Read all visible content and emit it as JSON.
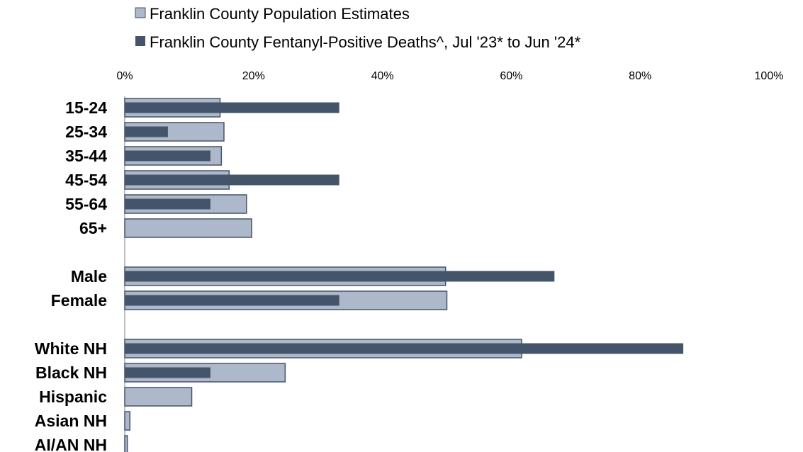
{
  "chart_data": {
    "type": "bar",
    "orientation": "horizontal",
    "title": "",
    "xlabel": "",
    "ylabel": "",
    "xlim": [
      0,
      100
    ],
    "x_ticks": [
      "0%",
      "20%",
      "40%",
      "60%",
      "80%",
      "100%"
    ],
    "x_axis_position": "top",
    "grid": false,
    "legend_position": "top",
    "categories": [
      "15-24",
      "25-34",
      "35-44",
      "45-54",
      "55-64",
      "65+",
      "Male",
      "Female",
      "White NH",
      "Black NH",
      "Hispanic",
      "Asian NH",
      "AI/AN NH"
    ],
    "groups": [
      {
        "categories": [
          "15-24",
          "25-34",
          "35-44",
          "45-54",
          "55-64",
          "65+"
        ]
      },
      {
        "categories": [
          "Male",
          "Female"
        ]
      },
      {
        "categories": [
          "White NH",
          "Black NH",
          "Hispanic",
          "Asian NH",
          "AI/AN NH"
        ]
      }
    ],
    "series": [
      {
        "name": "Franklin County Population Estimates",
        "color": "#adb9ca",
        "values": [
          14.8,
          15.4,
          15.0,
          16.2,
          18.9,
          19.7,
          49.8,
          50.0,
          61.6,
          24.9,
          10.4,
          0.8,
          0.4
        ]
      },
      {
        "name": "Franklin County Fentanyl-Positive Deaths^, Jul '23* to Jun '24*",
        "color": "#44546a",
        "values": [
          33.3,
          6.7,
          13.3,
          33.3,
          13.3,
          0,
          66.7,
          33.3,
          86.7,
          13.3,
          0,
          0,
          0
        ]
      }
    ]
  }
}
